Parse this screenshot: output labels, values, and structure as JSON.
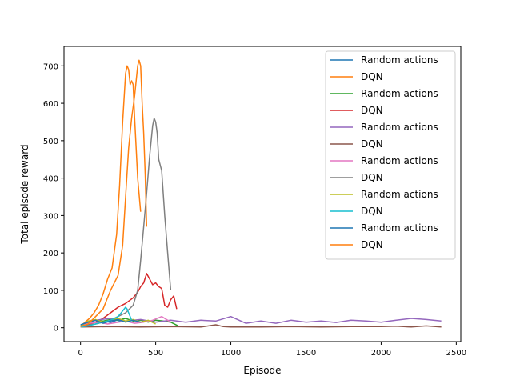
{
  "chart_data": {
    "type": "line",
    "title": "",
    "xlabel": "Episode",
    "ylabel": "Total episode reward",
    "xlim": [
      -110,
      2530
    ],
    "ylim": [
      -37,
      752
    ],
    "x_ticks": [
      0,
      500,
      1000,
      1500,
      2000,
      2500
    ],
    "y_ticks": [
      0,
      100,
      200,
      300,
      400,
      500,
      600,
      700
    ],
    "grid": false,
    "legend_position": "upper right",
    "legend": [
      "Random actions",
      "DQN",
      "Random actions",
      "DQN",
      "Random actions",
      "DQN",
      "Random actions",
      "DQN",
      "Random actions",
      "DQN",
      "Random actions",
      "DQN"
    ],
    "series": [
      {
        "name": "Random actions",
        "color": "#1f77b4",
        "x": [
          0,
          40,
          80,
          120,
          160,
          200,
          240,
          280,
          320
        ],
        "y": [
          5,
          10,
          15,
          12,
          18,
          14,
          20,
          16,
          18
        ]
      },
      {
        "name": "DQN",
        "color": "#ff7f0e",
        "x": [
          0,
          30,
          60,
          90,
          120,
          150,
          180,
          210,
          240,
          260,
          280,
          300,
          310,
          320,
          330,
          340,
          350,
          360,
          380,
          400
        ],
        "y": [
          3,
          15,
          25,
          40,
          60,
          90,
          130,
          160,
          250,
          380,
          550,
          680,
          700,
          690,
          650,
          660,
          650,
          560,
          400,
          310
        ]
      },
      {
        "name": "Random actions",
        "color": "#2ca02c",
        "x": [
          0,
          50,
          100,
          150,
          200,
          250,
          300,
          350,
          400,
          450,
          500,
          550,
          600,
          650
        ],
        "y": [
          5,
          15,
          20,
          18,
          22,
          20,
          25,
          18,
          20,
          15,
          20,
          18,
          15,
          5
        ]
      },
      {
        "name": "DQN",
        "color": "#d62728",
        "x": [
          0,
          50,
          100,
          150,
          200,
          250,
          300,
          350,
          380,
          400,
          420,
          440,
          460,
          480,
          500,
          520,
          540,
          560,
          580,
          600,
          620,
          640
        ],
        "y": [
          3,
          8,
          15,
          25,
          40,
          55,
          65,
          80,
          95,
          110,
          120,
          145,
          130,
          115,
          120,
          110,
          105,
          60,
          55,
          75,
          85,
          50
        ]
      },
      {
        "name": "Random actions",
        "color": "#9467bd",
        "x": [
          0,
          100,
          200,
          300,
          400,
          500,
          600,
          700,
          800,
          900,
          1000,
          1100,
          1200,
          1300,
          1400,
          1500,
          1600,
          1700,
          1800,
          1900,
          2000,
          2100,
          2200,
          2300,
          2400
        ],
        "y": [
          5,
          20,
          25,
          18,
          22,
          15,
          20,
          15,
          20,
          18,
          30,
          12,
          18,
          12,
          20,
          15,
          18,
          14,
          20,
          18,
          15,
          20,
          25,
          22,
          18
        ]
      },
      {
        "name": "DQN",
        "color": "#8c564b",
        "x": [
          0,
          200,
          400,
          600,
          800,
          900,
          950,
          1000,
          1200,
          1400,
          1600,
          1800,
          2000,
          2100,
          2200,
          2300,
          2400
        ],
        "y": [
          2,
          3,
          2,
          3,
          2,
          8,
          3,
          2,
          2,
          3,
          2,
          3,
          3,
          4,
          2,
          5,
          2
        ]
      },
      {
        "name": "Random actions",
        "color": "#e377c2",
        "x": [
          0,
          60,
          120,
          180,
          240,
          300,
          360,
          420,
          480,
          540,
          600
        ],
        "y": [
          5,
          12,
          15,
          10,
          14,
          18,
          12,
          15,
          20,
          30,
          15
        ]
      },
      {
        "name": "DQN",
        "color": "#7f7f7f",
        "x": [
          0,
          100,
          200,
          300,
          350,
          380,
          400,
          420,
          440,
          460,
          480,
          490,
          500,
          510,
          520,
          540,
          560,
          580,
          600
        ],
        "y": [
          5,
          10,
          20,
          40,
          60,
          100,
          180,
          270,
          360,
          460,
          540,
          560,
          550,
          520,
          450,
          420,
          300,
          200,
          100
        ]
      },
      {
        "name": "Random actions",
        "color": "#bcbd22",
        "x": [
          0,
          50,
          100,
          150,
          200,
          250,
          300,
          350,
          400,
          450,
          500
        ],
        "y": [
          5,
          18,
          22,
          15,
          20,
          25,
          18,
          22,
          15,
          20,
          10
        ]
      },
      {
        "name": "DQN",
        "color": "#17becf",
        "x": [
          0,
          50,
          100,
          150,
          200,
          250,
          280,
          300,
          310,
          320,
          330,
          340
        ],
        "y": [
          2,
          5,
          10,
          15,
          20,
          30,
          45,
          55,
          50,
          40,
          30,
          20
        ]
      },
      {
        "name": "Random actions",
        "color": "#1f77b4",
        "x": [
          0,
          50,
          100,
          150,
          200,
          250,
          300,
          350,
          400
        ],
        "y": [
          8,
          15,
          20,
          12,
          18,
          22,
          15,
          20,
          15
        ]
      },
      {
        "name": "DQN",
        "color": "#ff7f0e",
        "x": [
          0,
          50,
          100,
          150,
          200,
          250,
          280,
          300,
          320,
          340,
          360,
          370,
          380,
          390,
          400,
          410,
          420,
          430,
          440
        ],
        "y": [
          3,
          10,
          30,
          50,
          100,
          140,
          220,
          350,
          480,
          560,
          620,
          660,
          700,
          715,
          700,
          600,
          520,
          410,
          270
        ]
      }
    ]
  }
}
